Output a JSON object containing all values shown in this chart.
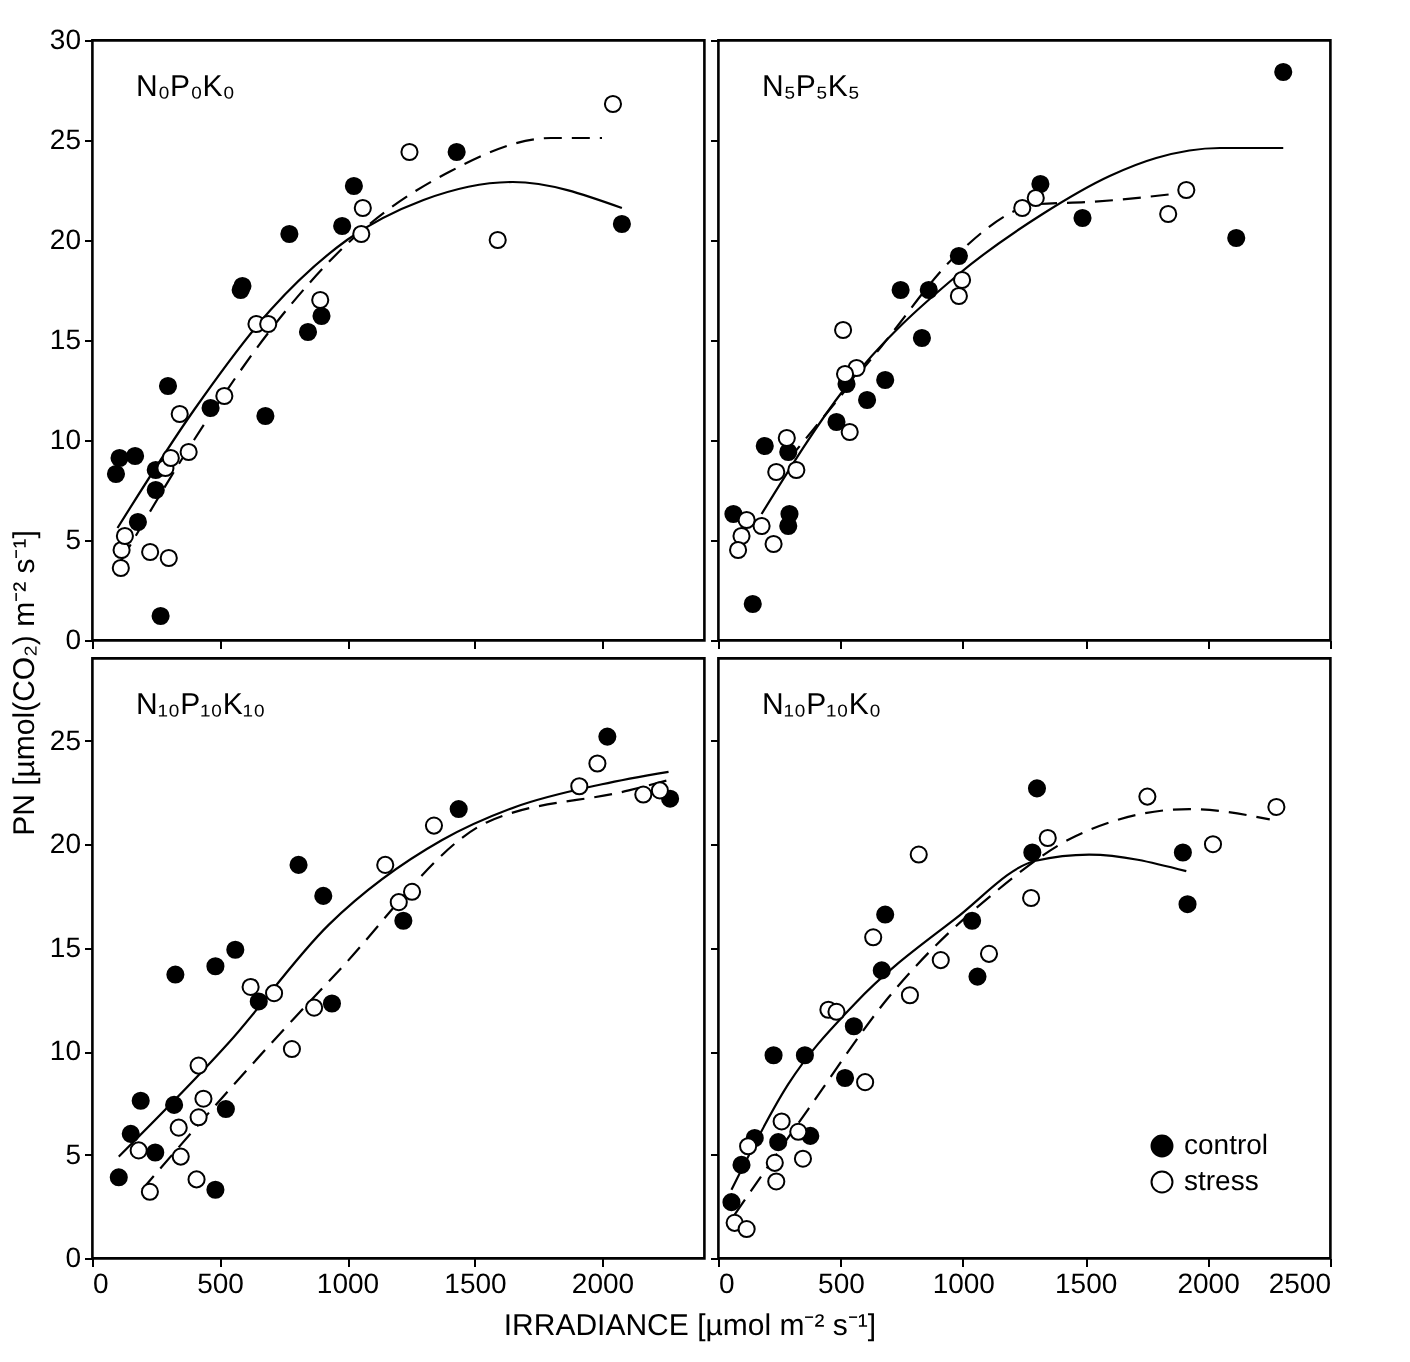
{
  "chart_data": [
    {
      "type": "scatter",
      "title": "N₀P₀K₀",
      "ylabel": "PN [µmol(CO₂) m⁻² s⁻¹]",
      "xlim": [
        0,
        2400
      ],
      "xticks": [
        0,
        500,
        1000,
        1500,
        2000
      ],
      "ylim": [
        0,
        30
      ],
      "yticks": [
        0,
        5,
        10,
        15,
        20,
        25,
        30
      ],
      "tick_labels": "y",
      "grid": false,
      "series": [
        {
          "type": "scatter",
          "marker": "circle",
          "color": "#000000",
          "x": [
            94,
            108,
            169,
            250,
            250,
            180,
            269,
            298,
            465,
            583,
            590,
            680,
            774,
            847,
            900,
            981,
            1027,
            1430,
            2078
          ],
          "values": [
            8.3,
            9.1,
            9.2,
            8.5,
            7.5,
            5.9,
            1.2,
            12.7,
            11.6,
            17.5,
            17.7,
            11.2,
            20.3,
            15.4,
            16.2,
            20.7,
            22.7,
            24.4,
            20.8
          ]
        },
        {
          "type": "scatter",
          "marker": "circle",
          "color": "#ffffff",
          "x": [
            113,
            116,
            129,
            228,
            301,
            288,
            309,
            344,
            379,
            519,
            645,
            691,
            895,
            1062,
            1056,
            1245,
            1591,
            2043
          ],
          "values": [
            3.6,
            4.5,
            5.2,
            4.4,
            4.1,
            8.6,
            9.1,
            11.3,
            9.4,
            12.2,
            15.8,
            15.8,
            17.0,
            21.6,
            20.3,
            24.4,
            20.0,
            26.8
          ]
        },
        {
          "type": "line",
          "color": "#000000",
          "marker": "none",
          "line_style": "solid",
          "x": [
            100,
            400,
            700,
            1000,
            1300,
            1650,
            2078
          ],
          "values": [
            5.6,
            11.5,
            16.5,
            20.0,
            22.0,
            22.9,
            21.6
          ]
        },
        {
          "type": "line",
          "color": "#000000",
          "marker": "none",
          "line_style": "dashed",
          "x": [
            116,
            400,
            700,
            1000,
            1400,
            1800,
            2000
          ],
          "values": [
            4.0,
            10.0,
            15.5,
            19.8,
            23.4,
            25.1,
            25.1
          ]
        }
      ]
    },
    {
      "type": "scatter",
      "title": "N₅P₅K₅",
      "xlim": [
        0,
        2500
      ],
      "xticks": [
        0,
        500,
        1000,
        1500,
        2000,
        2500
      ],
      "ylim": [
        0,
        30
      ],
      "yticks": [
        0,
        5,
        10,
        15,
        20,
        25,
        30
      ],
      "tick_labels": false,
      "grid": false,
      "series": [
        {
          "type": "scatter",
          "marker": "circle",
          "color": "#000000",
          "x": [
            2309,
            1317,
            1489,
            2117,
            984,
            746,
            861,
            833,
            683,
            609,
            525,
            484,
            191,
            287,
            63,
            292,
            287,
            142
          ],
          "values": [
            28.4,
            22.8,
            21.1,
            20.1,
            19.2,
            17.5,
            17.5,
            15.1,
            13.0,
            12.0,
            12.8,
            10.9,
            9.7,
            9.4,
            6.3,
            6.3,
            5.7,
            1.8
          ]
        },
        {
          "type": "scatter",
          "marker": "circle",
          "color": "#ffffff",
          "x": [
            1298,
            1243,
            1913,
            1839,
            997,
            984,
            511,
            566,
            519,
            538,
            281,
            238,
            320,
            117,
            178,
            96,
            82,
            227
          ],
          "values": [
            22.1,
            21.6,
            22.5,
            21.3,
            18.0,
            17.2,
            15.5,
            13.6,
            13.3,
            10.4,
            10.1,
            8.4,
            8.5,
            6.0,
            5.7,
            5.2,
            4.5,
            4.8
          ]
        },
        {
          "type": "line",
          "color": "#000000",
          "marker": "none",
          "line_style": "solid",
          "x": [
            178,
            519,
            984,
            1326,
            1600,
            1790,
            2050,
            2309
          ],
          "values": [
            6.3,
            12.6,
            18.3,
            21.3,
            23.2,
            24.1,
            24.6,
            24.6
          ]
        },
        {
          "type": "line",
          "color": "#000000",
          "marker": "none",
          "line_style": "dashed",
          "x": [
            287,
            669,
            970,
            1311,
            1516,
            1926
          ],
          "values": [
            9.0,
            14.7,
            19.2,
            21.8,
            21.9,
            22.4
          ]
        }
      ]
    },
    {
      "type": "scatter",
      "title": "N₁₀P₁₀K₁₀",
      "xlabel": "IRRADIANCE [µmol m⁻² s⁻¹]",
      "xlim": [
        0,
        2400
      ],
      "xticks": [
        0,
        500,
        1000,
        1500,
        2000
      ],
      "ylim": [
        0,
        29
      ],
      "yticks": [
        0,
        5,
        10,
        15,
        20,
        25
      ],
      "grid": false,
      "series": [
        {
          "type": "scatter",
          "marker": "circle",
          "color": "#000000",
          "x": [
            105,
            152,
            191,
            248,
            322,
            327,
            484,
            484,
            525,
            562,
            654,
            810,
            907,
            941,
            1221,
            1438,
            2021,
            2267
          ],
          "values": [
            3.9,
            6.0,
            7.6,
            5.1,
            7.4,
            13.7,
            3.3,
            14.1,
            7.2,
            14.9,
            12.4,
            19.0,
            17.5,
            12.3,
            16.3,
            21.7,
            25.2,
            22.2
          ]
        },
        {
          "type": "scatter",
          "marker": "circle",
          "color": "#ffffff",
          "x": [
            183,
            227,
            340,
            348,
            410,
            418,
            418,
            437,
            622,
            714,
            784,
            871,
            1150,
            1203,
            1255,
            1341,
            1911,
            1982,
            2162,
            2227
          ],
          "values": [
            5.2,
            3.2,
            6.3,
            4.9,
            3.8,
            9.3,
            6.8,
            7.7,
            13.1,
            12.8,
            10.1,
            12.1,
            19.0,
            17.2,
            17.7,
            20.9,
            22.8,
            23.9,
            22.4,
            22.6
          ]
        },
        {
          "type": "line",
          "color": "#000000",
          "marker": "none",
          "line_style": "solid",
          "x": [
            105,
            536,
            928,
            1373,
            1660,
            2000,
            2261
          ],
          "values": [
            4.9,
            10.4,
            16.1,
            20.2,
            21.8,
            22.9,
            23.5
          ]
        },
        {
          "type": "line",
          "color": "#000000",
          "marker": "none",
          "line_style": "dashed",
          "x": [
            196,
            536,
            954,
            1556,
            2105,
            2261
          ],
          "values": [
            3.3,
            8.1,
            13.7,
            21.1,
            22.6,
            23.1
          ]
        }
      ]
    },
    {
      "type": "scatter",
      "title": "N₁₀P₁₀K₀",
      "xlim": [
        0,
        2500
      ],
      "xticks": [
        0,
        500,
        1000,
        1500,
        2000,
        2500
      ],
      "ylim": [
        0,
        29
      ],
      "yticks": [
        0,
        5,
        10,
        15,
        20,
        25
      ],
      "tick_labels": "x",
      "grid": false,
      "legend": "bottom right",
      "series": [
        {
          "type": "scatter",
          "marker": "circle",
          "name": "control",
          "color": "#000000",
          "x": [
            55,
            96,
            150,
            246,
            227,
            355,
            377,
            519,
            555,
            669,
            683,
            1038,
            1060,
            1284,
            1303,
            1899,
            1918
          ],
          "values": [
            2.7,
            4.5,
            5.8,
            5.6,
            9.8,
            9.8,
            5.9,
            8.7,
            11.2,
            13.9,
            16.6,
            16.3,
            13.6,
            19.6,
            22.7,
            19.6,
            17.1
          ]
        },
        {
          "type": "scatter",
          "marker": "circle",
          "name": "stress",
          "color": "#ffffff",
          "x": [
            68,
            117,
            123,
            232,
            238,
            260,
            328,
            347,
            451,
            484,
            601,
            634,
            784,
            820,
            910,
            1107,
            1279,
            1347,
            1754,
            2022,
            2281
          ],
          "values": [
            1.7,
            1.4,
            5.4,
            4.6,
            3.7,
            6.6,
            6.1,
            4.8,
            12.0,
            11.9,
            8.5,
            15.5,
            12.7,
            19.5,
            14.4,
            14.7,
            17.4,
            20.3,
            22.3,
            20.0,
            21.8
          ]
        },
        {
          "type": "line",
          "color": "#000000",
          "marker": "none",
          "line_style": "solid",
          "x": [
            55,
            287,
            560,
            970,
            1298,
            1516,
            1913
          ],
          "values": [
            3.3,
            8.4,
            12.3,
            16.4,
            19.2,
            19.5,
            18.7
          ]
        },
        {
          "type": "line",
          "color": "#000000",
          "marker": "none",
          "line_style": "dashed",
          "x": [
            68,
            369,
            697,
            1134,
            1462,
            1926,
            2254
          ],
          "values": [
            2.1,
            7.2,
            12.6,
            17.7,
            20.4,
            21.7,
            21.2
          ]
        }
      ]
    }
  ]
}
